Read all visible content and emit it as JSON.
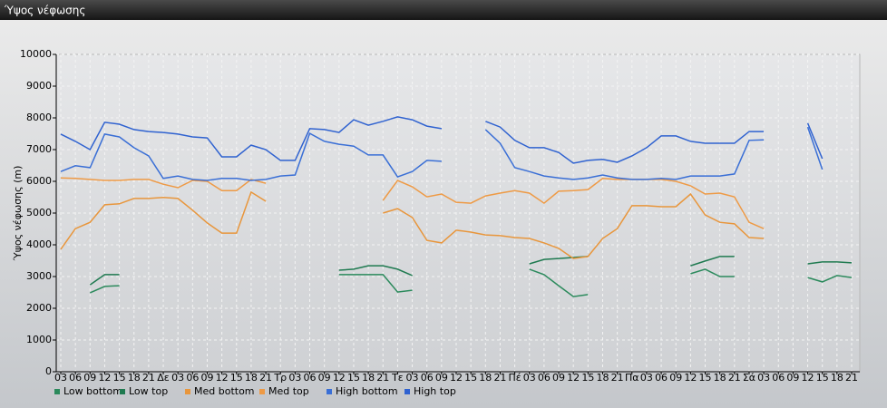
{
  "chart_data": {
    "type": "line",
    "title": "Ύψος νέφωσης",
    "y_label": "Ύψος νέφωσης (m)",
    "categories": [
      "03",
      "06",
      "09",
      "12",
      "15",
      "18",
      "21",
      "Δε",
      "03",
      "06",
      "09",
      "12",
      "15",
      "18",
      "21",
      "Τρ",
      "03",
      "06",
      "09",
      "12",
      "15",
      "18",
      "21",
      "Τε",
      "03",
      "06",
      "09",
      "12",
      "15",
      "18",
      "21",
      "Πέ",
      "03",
      "06",
      "09",
      "12",
      "15",
      "18",
      "21",
      "Πα",
      "03",
      "06",
      "09",
      "12",
      "15",
      "18",
      "21",
      "Σά",
      "03",
      "06",
      "09",
      "12",
      "15",
      "18",
      "21"
    ],
    "ylim": [
      0,
      10000
    ],
    "yticks": [
      0,
      1000,
      2000,
      3000,
      4000,
      5000,
      6000,
      7000,
      8000,
      9000,
      10000
    ],
    "grid": true,
    "series": [
      {
        "name": "Low bottom",
        "color": "#2b8a5c",
        "values": [
          null,
          null,
          2490,
          2690,
          2710,
          null,
          null,
          null,
          null,
          null,
          null,
          null,
          null,
          null,
          null,
          null,
          null,
          null,
          null,
          3060,
          3060,
          3060,
          3060,
          2510,
          2570,
          null,
          null,
          null,
          null,
          null,
          null,
          null,
          3230,
          3060,
          2710,
          2370,
          2430,
          null,
          null,
          null,
          null,
          null,
          null,
          3090,
          3230,
          3000,
          3000,
          null,
          null,
          null,
          null,
          2970,
          2830,
          3030,
          2970
        ]
      },
      {
        "name": "Low top",
        "color": "#1f7a50",
        "values": [
          null,
          null,
          2740,
          3060,
          3060,
          null,
          null,
          null,
          null,
          null,
          null,
          null,
          null,
          null,
          null,
          null,
          null,
          null,
          null,
          3200,
          3230,
          3340,
          3340,
          3230,
          3030,
          null,
          null,
          null,
          null,
          null,
          null,
          null,
          3400,
          3540,
          3570,
          3600,
          3630,
          null,
          null,
          null,
          null,
          null,
          null,
          3340,
          3490,
          3630,
          3630,
          null,
          null,
          null,
          null,
          3400,
          3460,
          3460,
          3430
        ]
      },
      {
        "name": "Med bottom",
        "color": "#e8963c",
        "values": [
          3860,
          4510,
          4710,
          5260,
          5290,
          5460,
          5460,
          5490,
          5460,
          5090,
          4690,
          4370,
          4370,
          5660,
          5370,
          null,
          null,
          null,
          null,
          null,
          null,
          null,
          5000,
          5140,
          4860,
          4140,
          4060,
          4460,
          4400,
          4310,
          4290,
          4230,
          4200,
          4060,
          3890,
          3570,
          3630,
          4200,
          4510,
          5230,
          5230,
          5200,
          5200,
          5600,
          4940,
          4710,
          4660,
          4230,
          4200,
          null,
          null,
          null,
          null,
          null,
          null
        ]
      },
      {
        "name": "Med top",
        "color": "#ee9a45",
        "values": [
          6110,
          6090,
          6060,
          6030,
          6030,
          6060,
          6060,
          5910,
          5800,
          6030,
          6000,
          5710,
          5710,
          6060,
          5940,
          null,
          null,
          null,
          null,
          null,
          null,
          null,
          5400,
          6030,
          5830,
          5510,
          5600,
          5340,
          5310,
          5540,
          5630,
          5710,
          5630,
          5310,
          5690,
          5710,
          5740,
          6090,
          6060,
          6060,
          6060,
          6060,
          6000,
          5860,
          5600,
          5630,
          5510,
          4710,
          4510,
          null,
          null,
          null,
          null,
          null,
          null
        ]
      },
      {
        "name": "High bottom",
        "color": "#3a6fd6",
        "values": [
          6310,
          6490,
          6430,
          7490,
          7400,
          7060,
          6800,
          6090,
          6170,
          6060,
          6030,
          6090,
          6090,
          6030,
          6060,
          6170,
          6200,
          7510,
          7260,
          7170,
          7110,
          6830,
          6830,
          6140,
          6310,
          6660,
          6630,
          null,
          null,
          7630,
          7200,
          6430,
          6310,
          6170,
          6110,
          6060,
          6110,
          6200,
          6110,
          6060,
          6060,
          6090,
          6060,
          6170,
          6170,
          6170,
          6230,
          7290,
          7310,
          null,
          null,
          7710,
          6370,
          null,
          null
        ]
      },
      {
        "name": "High top",
        "color": "#2f62d0",
        "values": [
          7490,
          7260,
          7000,
          7860,
          7800,
          7630,
          7570,
          7540,
          7490,
          7400,
          7370,
          6770,
          6770,
          7140,
          7000,
          6660,
          6660,
          7660,
          7630,
          7540,
          7940,
          7770,
          7890,
          8030,
          7940,
          7740,
          7660,
          null,
          null,
          7890,
          7710,
          7290,
          7060,
          7060,
          6910,
          6570,
          6660,
          6690,
          6600,
          6800,
          7060,
          7430,
          7430,
          7260,
          7200,
          7200,
          7200,
          7570,
          7570,
          null,
          null,
          7830,
          6710,
          null,
          null
        ]
      }
    ]
  }
}
